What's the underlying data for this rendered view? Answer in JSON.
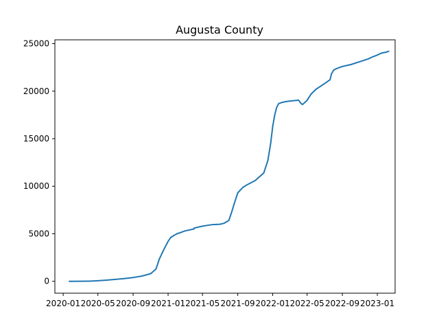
{
  "chart_data": {
    "type": "line",
    "title": "Augusta County",
    "xlabel": "",
    "ylabel": "",
    "x_axis_type": "date",
    "xlim": [
      "2019-12-03",
      "2023-03-04"
    ],
    "ylim": [
      -1250,
      25400
    ],
    "grid": false,
    "legend": "none",
    "x_ticks": [
      {
        "value": "2020-01-01",
        "label": "2020-01"
      },
      {
        "value": "2020-05-01",
        "label": "2020-05"
      },
      {
        "value": "2020-09-01",
        "label": "2020-09"
      },
      {
        "value": "2021-01-01",
        "label": "2021-01"
      },
      {
        "value": "2021-05-01",
        "label": "2021-05"
      },
      {
        "value": "2021-09-01",
        "label": "2021-09"
      },
      {
        "value": "2022-01-01",
        "label": "2022-01"
      },
      {
        "value": "2022-05-01",
        "label": "2022-05"
      },
      {
        "value": "2022-09-01",
        "label": "2022-09"
      },
      {
        "value": "2023-01-01",
        "label": "2023-01"
      }
    ],
    "y_ticks": [
      {
        "value": 0,
        "label": "0"
      },
      {
        "value": 5000,
        "label": "5000"
      },
      {
        "value": 10000,
        "label": "10000"
      },
      {
        "value": 15000,
        "label": "15000"
      },
      {
        "value": 20000,
        "label": "20000"
      },
      {
        "value": 25000,
        "label": "25000"
      }
    ],
    "series": [
      {
        "color": "#1f77b4",
        "x": [
          "2020-01-22",
          "2020-03-01",
          "2020-04-01",
          "2020-05-01",
          "2020-06-01",
          "2020-07-01",
          "2020-08-01",
          "2020-09-01",
          "2020-10-01",
          "2020-11-01",
          "2020-11-20",
          "2020-12-01",
          "2020-12-10",
          "2020-12-20",
          "2021-01-01",
          "2021-01-10",
          "2021-01-20",
          "2021-02-01",
          "2021-02-15",
          "2021-03-01",
          "2021-04-01",
          "2021-04-02",
          "2021-05-01",
          "2021-06-01",
          "2021-07-01",
          "2021-07-15",
          "2021-08-01",
          "2021-08-10",
          "2021-08-20",
          "2021-09-01",
          "2021-09-10",
          "2021-09-20",
          "2021-10-01",
          "2021-11-01",
          "2021-12-01",
          "2021-12-15",
          "2021-12-25",
          "2022-01-01",
          "2022-01-08",
          "2022-01-15",
          "2022-01-22",
          "2022-02-01",
          "2022-02-15",
          "2022-03-01",
          "2022-04-01",
          "2022-04-10",
          "2022-04-15",
          "2022-04-30",
          "2022-05-15",
          "2022-06-01",
          "2022-07-01",
          "2022-07-20",
          "2022-07-25",
          "2022-08-01",
          "2022-08-10",
          "2022-09-01",
          "2022-10-01",
          "2022-11-01",
          "2022-12-01",
          "2022-12-15",
          "2023-01-01",
          "2023-01-15",
          "2023-02-01",
          "2023-02-10"
        ],
        "y": [
          0,
          5,
          15,
          60,
          120,
          200,
          280,
          400,
          550,
          800,
          1300,
          2300,
          2900,
          3500,
          4200,
          4600,
          4800,
          5000,
          5150,
          5300,
          5500,
          5600,
          5800,
          5950,
          6000,
          6100,
          6400,
          7200,
          8200,
          9300,
          9600,
          9900,
          10100,
          10600,
          11400,
          12700,
          14500,
          16300,
          17500,
          18300,
          18700,
          18800,
          18900,
          18950,
          19050,
          18700,
          18600,
          19000,
          19700,
          20200,
          20800,
          21200,
          21800,
          22200,
          22350,
          22600,
          22800,
          23100,
          23400,
          23600,
          23800,
          24000,
          24100,
          24200
        ]
      }
    ]
  }
}
